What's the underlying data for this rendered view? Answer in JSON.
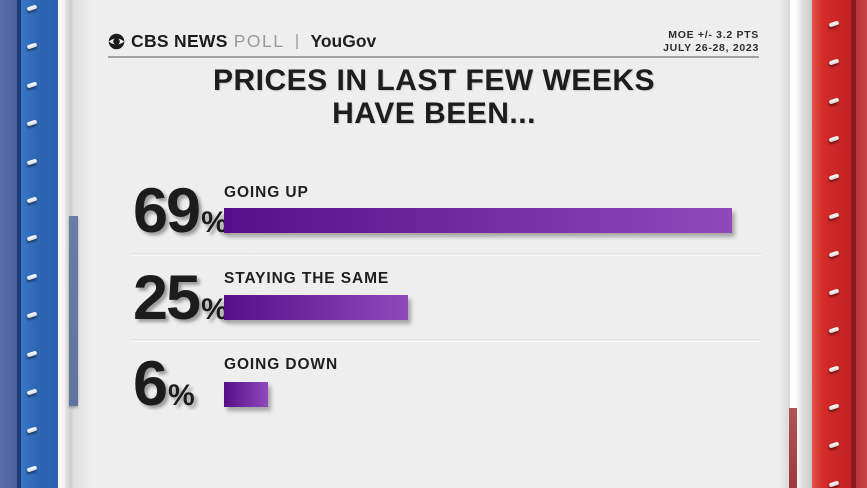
{
  "header": {
    "brand_cbs": "CBS NEWS",
    "brand_poll": "POLL",
    "brand_partner": "YouGov",
    "moe_line1": "MOE +/- 3.2 PTS",
    "moe_line2": "JULY 26-28, 2023"
  },
  "title": {
    "line1": "PRICES IN LAST FEW WEEKS",
    "line2": "HAVE BEEN..."
  },
  "chart_data": {
    "type": "bar",
    "orientation": "horizontal",
    "title": "PRICES IN LAST FEW WEEKS HAVE BEEN...",
    "categories": [
      "GOING UP",
      "STAYING THE SAME",
      "GOING DOWN"
    ],
    "values": [
      69,
      25,
      6
    ],
    "unit": "%",
    "axis_max": 69,
    "grid": false,
    "legend": false,
    "bar_gradient": [
      "#570e88",
      "#9049bb"
    ]
  },
  "colors": {
    "purple_dark": "#570e88",
    "purple_light": "#9049bb",
    "panel_blue": "#2c66b4",
    "panel_red": "#d42a28",
    "card_bg": "#efeeee",
    "text_dark": "#1d1d1d"
  }
}
